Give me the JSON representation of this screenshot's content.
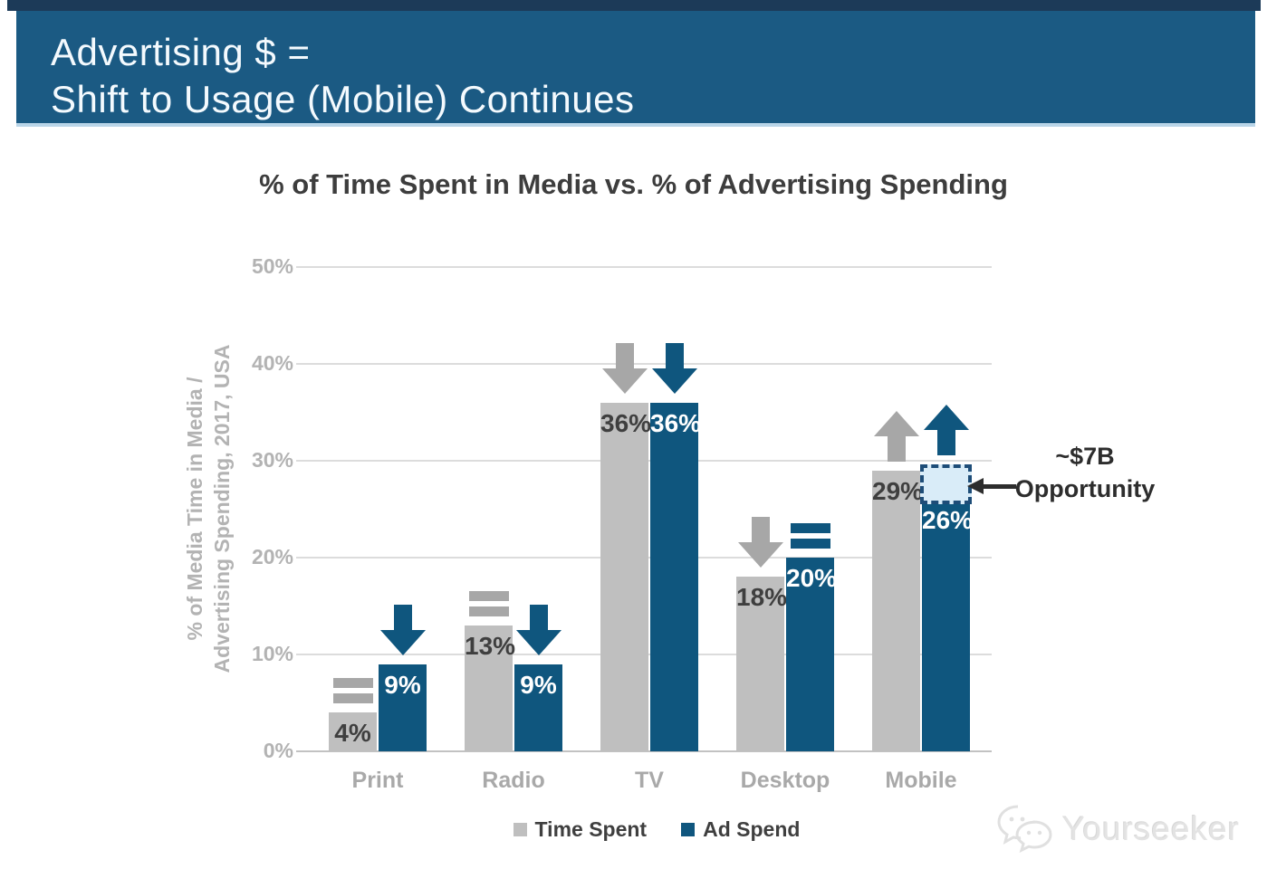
{
  "header": {
    "line1": "Advertising $ =",
    "line2": "Shift to Usage (Mobile) Continues"
  },
  "chart_data": {
    "type": "bar",
    "title": "% of Time Spent in Media vs. % of Advertising Spending",
    "ylabel": [
      "% of Media Time in Media /",
      "Advertising Spending, 2017, USA"
    ],
    "categories": [
      "Print",
      "Radio",
      "TV",
      "Desktop",
      "Mobile"
    ],
    "series": [
      {
        "name": "Time Spent",
        "color": "#bfbfbf",
        "label_color": "#3f3f3f",
        "marker_color": "#a7a7a7",
        "values": [
          4,
          13,
          36,
          18,
          29
        ],
        "labels": [
          "4%",
          "13%",
          "36%",
          "18%",
          "29%"
        ],
        "trend_markers": [
          "equal",
          "equal",
          "down",
          "down",
          "up"
        ]
      },
      {
        "name": "Ad Spend",
        "color": "#0f567e",
        "label_color": "#ffffff",
        "marker_color": "#0f567e",
        "values": [
          9,
          9,
          36,
          20,
          26
        ],
        "labels": [
          "9%",
          "9%",
          "36%",
          "20%",
          "26%"
        ],
        "trend_markers": [
          "down",
          "down",
          "down",
          "equal",
          "up"
        ]
      }
    ],
    "ylim": [
      0,
      50
    ],
    "yticks": [
      "0%",
      "10%",
      "20%",
      "30%",
      "40%",
      "50%"
    ],
    "grid": true,
    "legend_position": "bottom",
    "annotation": {
      "line1": "~$7B",
      "line2": "Opportunity",
      "target_category": "Mobile",
      "target_series": "Ad Spend",
      "cap_fill": "#d9ecf8",
      "cap_border": "#1e4d78"
    }
  },
  "watermark": {
    "text": "Yourseeker"
  }
}
